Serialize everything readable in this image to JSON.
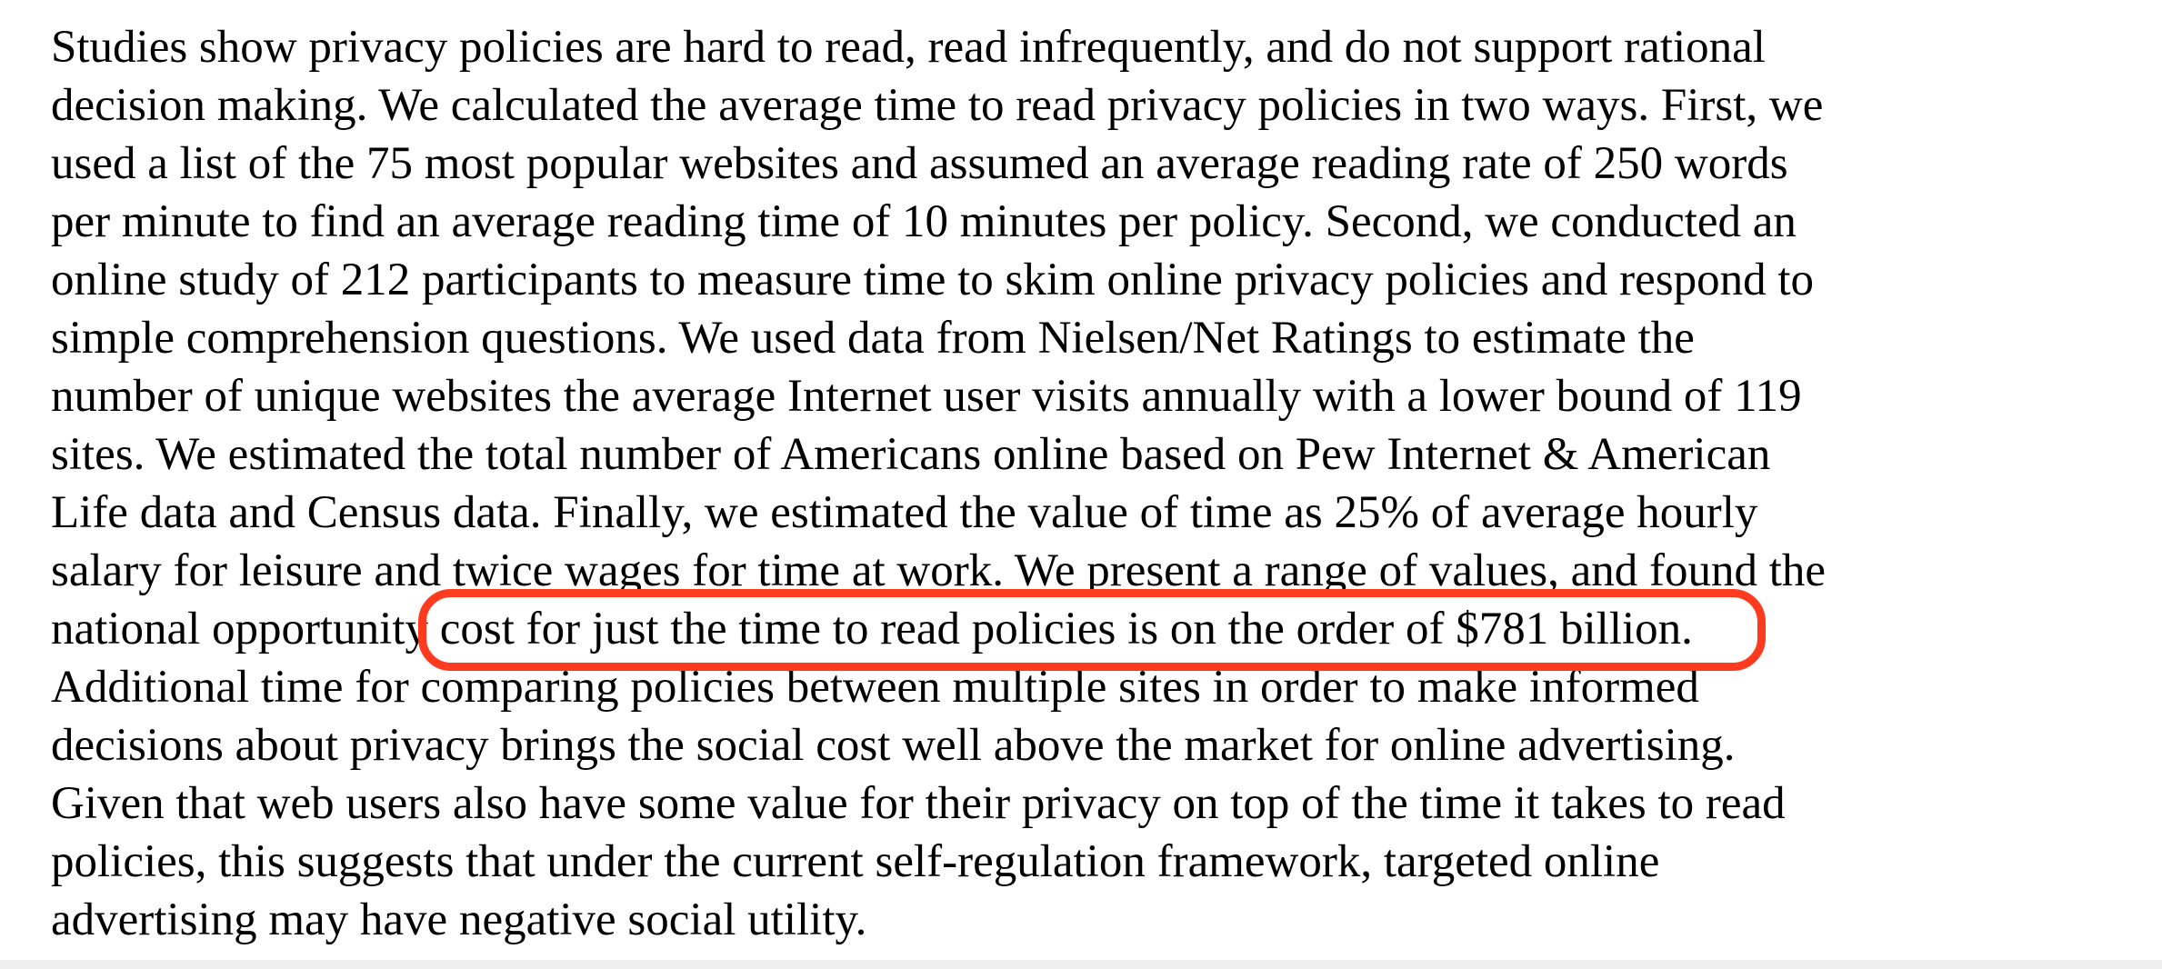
{
  "abstract": {
    "lines": [
      "Studies show privacy policies are hard to read, read infrequently, and do not support rational",
      "decision making. We calculated the average time to read privacy policies in two ways. First, we",
      "used a list of the 75 most popular websites and assumed an average reading rate of 250 words",
      "per minute to find an average reading time of 10 minutes per policy. Second, we conducted an",
      "online study of 212 participants to measure time to skim online privacy policies and respond to",
      "simple comprehension questions. We used data from Nielsen/Net Ratings to estimate the",
      "number of unique websites the average Internet user visits annually with a lower bound of 119",
      "sites. We estimated the total number of Americans online based on Pew Internet & American",
      "Life data and Census data. Finally, we estimated the value of time as 25% of average hourly",
      "salary for leisure and twice wages for time at work. We present a range of values, and found the"
    ],
    "highlight_line_prefix": "national opportunity ",
    "highlight_text": "cost for just the time to read policies is on the order of $781 billion.",
    "lines_after": [
      "Additional time for comparing policies between multiple sites in order to make informed",
      "decisions about privacy brings the social cost well above the market for online advertising.",
      "Given that web users also have some value for their privacy on top of the time it takes to read",
      "policies, this suggests that under the current self-regulation framework, targeted online",
      "advertising may have negative social utility."
    ]
  },
  "colors": {
    "text": "#000000",
    "highlight_ring": "#ff3b1f",
    "background": "#ffffff"
  }
}
